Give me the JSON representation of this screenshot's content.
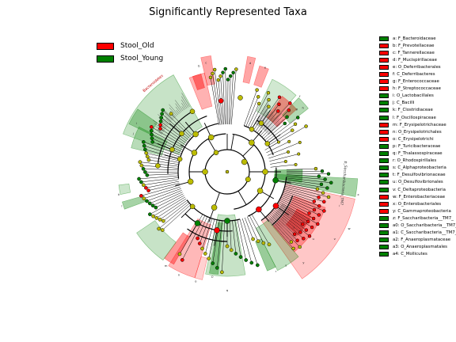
{
  "title": "Significantly Represented Taxa",
  "colors": {
    "old": "#ff0000",
    "young": "#008000",
    "node": "#bcbc00",
    "edge": "#000000"
  },
  "groups": [
    {
      "label": "Stool_Old",
      "color": "#ff0000"
    },
    {
      "label": "Stool_Young",
      "color": "#008000"
    }
  ],
  "clade_key": [
    {
      "label": "a: F_Bacteroidaceae",
      "group": "young"
    },
    {
      "label": "b: F_Prevotellaceae",
      "group": "old"
    },
    {
      "label": "c: F_Tannerellaceae",
      "group": "old"
    },
    {
      "label": "d: F_Mucispirillaceae",
      "group": "old"
    },
    {
      "label": "e: O_Deferribacterales",
      "group": "old"
    },
    {
      "label": "f: C_Deferribacteres",
      "group": "old"
    },
    {
      "label": "g: F_Enterococcaceae",
      "group": "old"
    },
    {
      "label": "h: F_Streptococcaceae",
      "group": "old"
    },
    {
      "label": "i: O_Lactobacillales",
      "group": "young"
    },
    {
      "label": "j: C_Bacilli",
      "group": "young"
    },
    {
      "label": "k: F_Clostridiaceae",
      "group": "young"
    },
    {
      "label": "l: F_Oscillospiraceae",
      "group": "young"
    },
    {
      "label": "m: F_Erysipelotrichaceae",
      "group": "old"
    },
    {
      "label": "n: O_Erysipelotrichales",
      "group": "old"
    },
    {
      "label": "o: C_Erysipelotrichi",
      "group": "old"
    },
    {
      "label": "p: F_Turicibacteraceae",
      "group": "young"
    },
    {
      "label": "q: F_Thalassospiraceae",
      "group": "young"
    },
    {
      "label": "r: O_Rhodospirillales",
      "group": "young"
    },
    {
      "label": "s: C_Alphaproteobacteria",
      "group": "young"
    },
    {
      "label": "t: F_Desulfovibrionaceae",
      "group": "young"
    },
    {
      "label": "u: O_Desulfovibrionales",
      "group": "young"
    },
    {
      "label": "v: C_Deltaproteobacteria",
      "group": "young"
    },
    {
      "label": "w: F_Enterobacteriaceae",
      "group": "old"
    },
    {
      "label": "x: O_Enterobacteriales",
      "group": "old"
    },
    {
      "label": "y: C_Gammaproteobacteria",
      "group": "old"
    },
    {
      "label": "z: F_Saccharibacteria__TM7_",
      "group": "young"
    },
    {
      "label": "a0: O_Saccharibacteria__TM7_",
      "group": "young"
    },
    {
      "label": "a1: C_Saccharibacteria__TM7_",
      "group": "young"
    },
    {
      "label": "a2: F_Anaeroplasmataceae",
      "group": "young"
    },
    {
      "label": "a3: O_Anaeroplasmatales",
      "group": "young"
    },
    {
      "label": "a4: C_Mollicutes",
      "group": "young"
    }
  ],
  "sector_labels": {
    "bacteria": "Bacteroidetes",
    "tm7": "p_Saccharibacteria_TM7_",
    "b": "b",
    "c": "c",
    "d": "d",
    "e": "e",
    "f": "f",
    "g": "g",
    "h": "h",
    "i": "i",
    "j": "j",
    "k": "k",
    "l": "l",
    "m": "m",
    "n": "n",
    "o": "o",
    "p": "p",
    "q": "q",
    "r": "r",
    "s": "s",
    "t": "t",
    "u": "u",
    "v": "v",
    "w": "w",
    "x": "x",
    "y": "y"
  }
}
